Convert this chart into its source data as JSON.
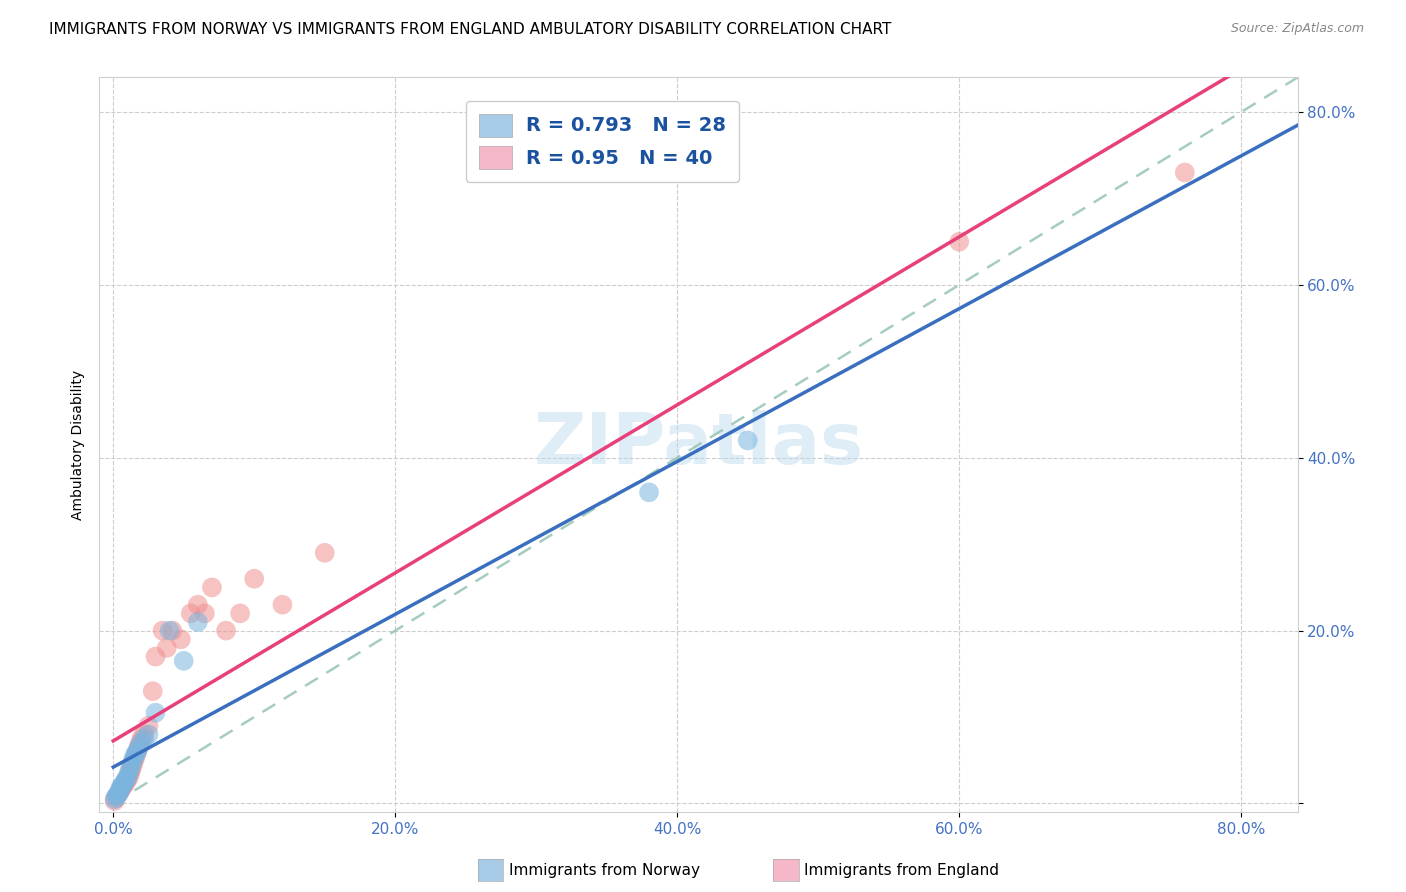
{
  "title": "IMMIGRANTS FROM NORWAY VS IMMIGRANTS FROM ENGLAND AMBULATORY DISABILITY CORRELATION CHART",
  "source": "Source: ZipAtlas.com",
  "ylabel": "Ambulatory Disability",
  "norway_label": "Immigrants from Norway",
  "england_label": "Immigrants from England",
  "norway_R": 0.793,
  "norway_N": 28,
  "england_R": 0.95,
  "england_N": 40,
  "norway_color": "#7ab5e0",
  "england_color": "#f09090",
  "norway_line_color": "#3a6fbf",
  "england_line_color": "#e8407a",
  "legend_norway_color": "#a8cce8",
  "legend_england_color": "#f5b8c8",
  "ref_line_color": "#90c0b0",
  "norway_x": [
    0.001,
    0.002,
    0.003,
    0.004,
    0.005,
    0.005,
    0.006,
    0.007,
    0.008,
    0.009,
    0.01,
    0.011,
    0.012,
    0.013,
    0.014,
    0.015,
    0.016,
    0.017,
    0.018,
    0.02,
    0.022,
    0.025,
    0.03,
    0.04,
    0.05,
    0.06,
    0.38,
    0.45
  ],
  "norway_y": [
    0.005,
    0.008,
    0.01,
    0.012,
    0.015,
    0.018,
    0.02,
    0.022,
    0.025,
    0.028,
    0.03,
    0.035,
    0.04,
    0.045,
    0.05,
    0.055,
    0.058,
    0.06,
    0.065,
    0.07,
    0.075,
    0.08,
    0.105,
    0.2,
    0.165,
    0.21,
    0.36,
    0.42
  ],
  "england_x": [
    0.001,
    0.002,
    0.003,
    0.004,
    0.005,
    0.006,
    0.007,
    0.008,
    0.009,
    0.01,
    0.011,
    0.012,
    0.012,
    0.013,
    0.014,
    0.015,
    0.016,
    0.017,
    0.018,
    0.019,
    0.02,
    0.022,
    0.025,
    0.028,
    0.03,
    0.035,
    0.038,
    0.042,
    0.048,
    0.055,
    0.06,
    0.065,
    0.07,
    0.08,
    0.09,
    0.1,
    0.12,
    0.15,
    0.6,
    0.76
  ],
  "england_y": [
    0.003,
    0.006,
    0.01,
    0.012,
    0.015,
    0.018,
    0.02,
    0.022,
    0.025,
    0.028,
    0.03,
    0.035,
    0.038,
    0.04,
    0.045,
    0.05,
    0.055,
    0.06,
    0.065,
    0.07,
    0.075,
    0.08,
    0.09,
    0.13,
    0.17,
    0.2,
    0.18,
    0.2,
    0.19,
    0.22,
    0.23,
    0.22,
    0.25,
    0.2,
    0.22,
    0.26,
    0.23,
    0.29,
    0.65,
    0.73
  ],
  "xlim": [
    -0.01,
    0.84
  ],
  "ylim": [
    -0.01,
    0.84
  ],
  "xticks": [
    0.0,
    0.2,
    0.4,
    0.6,
    0.8
  ],
  "yticks": [
    0.0,
    0.2,
    0.4,
    0.6,
    0.8
  ],
  "xticklabels": [
    "0.0%",
    "20.0%",
    "40.0%",
    "60.0%",
    "80.0%"
  ],
  "yticklabels": [
    "20.0%",
    "40.0%",
    "60.0%",
    "80.0%"
  ],
  "watermark": "ZIPatlas",
  "title_fontsize": 11,
  "axis_label_fontsize": 10,
  "tick_fontsize": 11,
  "source_fontsize": 9,
  "background_color": "#ffffff",
  "grid_color": "#c8c8c8"
}
